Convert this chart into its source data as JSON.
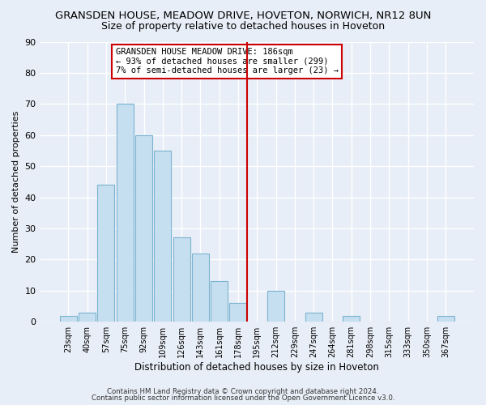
{
  "title": "GRANSDEN HOUSE, MEADOW DRIVE, HOVETON, NORWICH, NR12 8UN",
  "subtitle": "Size of property relative to detached houses in Hoveton",
  "xlabel": "Distribution of detached houses by size in Hoveton",
  "ylabel": "Number of detached properties",
  "bar_labels": [
    "23sqm",
    "40sqm",
    "57sqm",
    "75sqm",
    "92sqm",
    "109sqm",
    "126sqm",
    "143sqm",
    "161sqm",
    "178sqm",
    "195sqm",
    "212sqm",
    "229sqm",
    "247sqm",
    "264sqm",
    "281sqm",
    "298sqm",
    "315sqm",
    "333sqm",
    "350sqm",
    "367sqm"
  ],
  "bar_values": [
    2,
    3,
    44,
    70,
    60,
    55,
    27,
    22,
    13,
    6,
    0,
    10,
    0,
    3,
    0,
    2,
    0,
    0,
    0,
    0,
    2
  ],
  "bar_color": "#c6dff0",
  "bar_edge_color": "#7ab3d0",
  "ylim": [
    0,
    90
  ],
  "yticks": [
    0,
    10,
    20,
    30,
    40,
    50,
    60,
    70,
    80,
    90
  ],
  "vline_x": 9.47,
  "vline_color": "#cc0000",
  "annotation_text": "GRANSDEN HOUSE MEADOW DRIVE: 186sqm\n← 93% of detached houses are smaller (299)\n7% of semi-detached houses are larger (23) →",
  "footer1": "Contains HM Land Registry data © Crown copyright and database right 2024.",
  "footer2": "Contains public sector information licensed under the Open Government Licence v3.0.",
  "bg_color": "#e8eef7",
  "plot_bg_color": "#e8eef7",
  "grid_color": "#ffffff",
  "title_fontsize": 9.5,
  "subtitle_fontsize": 9
}
